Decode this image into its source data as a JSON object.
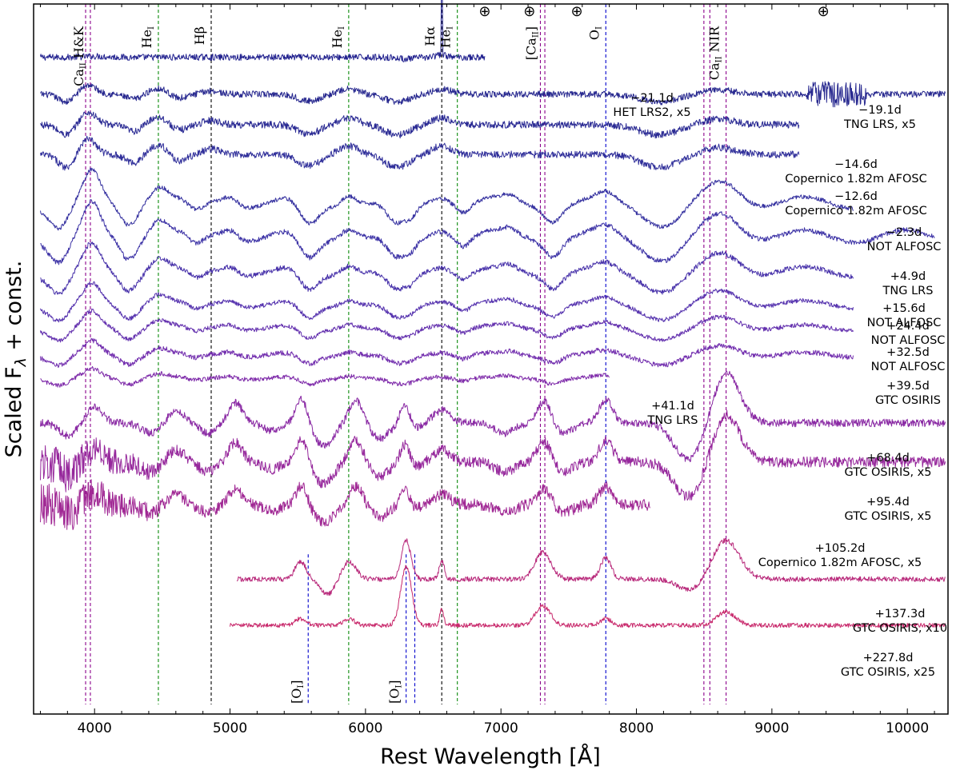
{
  "chart_data": {
    "type": "line",
    "title": "",
    "xlabel": "Rest Wavelength [Å]",
    "ylabel": "Scaled F_λ + const.",
    "ylabel_main": "Scaled F",
    "ylabel_sub": "λ",
    "ylabel_rest": " + const.",
    "xlim": [
      3550,
      10300
    ],
    "ylim": [
      0,
      100
    ],
    "xticks": [
      {
        "value": 4000,
        "label": "4000"
      },
      {
        "value": 5000,
        "label": "5000"
      },
      {
        "value": 6000,
        "label": "6000"
      },
      {
        "value": 7000,
        "label": "7000"
      },
      {
        "value": 8000,
        "label": "8000"
      },
      {
        "value": 9000,
        "label": "9000"
      },
      {
        "value": 10000,
        "label": "10000"
      }
    ],
    "telluric_symbol": "⊕",
    "telluric_wavelengths": [
      6880,
      7210,
      7560,
      9380
    ],
    "line_markers": [
      {
        "name": "Ca II H&K",
        "label": "Ca",
        "ion": "II",
        "suffix": " H&K",
        "wavelengths": [
          3934,
          3969
        ],
        "color": "#8b008b",
        "pos": "top"
      },
      {
        "name": "He I 4471",
        "label": "He",
        "ion": "I",
        "suffix": "",
        "wavelengths": [
          4471
        ],
        "color": "#0a8a0a",
        "pos": "top"
      },
      {
        "name": "H beta",
        "label": "Hβ",
        "ion": "",
        "suffix": "",
        "wavelengths": [
          4861
        ],
        "color": "#000000",
        "pos": "top"
      },
      {
        "name": "He I 5876",
        "label": "He",
        "ion": "I",
        "suffix": "",
        "wavelengths": [
          5876
        ],
        "color": "#0a8a0a",
        "pos": "top"
      },
      {
        "name": "H alpha",
        "label": "Hα",
        "ion": "",
        "suffix": "",
        "wavelengths": [
          6563
        ],
        "color": "#000000",
        "pos": "top"
      },
      {
        "name": "He I 6678",
        "label": "He",
        "ion": "I",
        "suffix": "",
        "wavelengths": [
          6678
        ],
        "color": "#0a8a0a",
        "pos": "top"
      },
      {
        "name": "[Ca II]",
        "label": "[Ca",
        "ion": "II",
        "suffix": "]",
        "wavelengths": [
          7291,
          7324
        ],
        "color": "#8b008b",
        "pos": "top"
      },
      {
        "name": "O I 7774",
        "label": "O",
        "ion": "I",
        "suffix": "",
        "wavelengths": [
          7774
        ],
        "color": "#0000cc",
        "pos": "top"
      },
      {
        "name": "Ca II NIR",
        "label": "Ca",
        "ion": "II",
        "suffix": " NIR",
        "wavelengths": [
          8498,
          8542,
          8662
        ],
        "color": "#8b008b",
        "pos": "top"
      },
      {
        "name": "[O I] 5577",
        "label": "[O",
        "ion": "I",
        "suffix": "]",
        "wavelengths": [
          5577
        ],
        "color": "#0000cc",
        "pos": "bottom"
      },
      {
        "name": "[O I] 6300,6364",
        "label": "[O",
        "ion": "I",
        "suffix": "]",
        "wavelengths": [
          6300,
          6364
        ],
        "color": "#0000cc",
        "pos": "bottom"
      }
    ],
    "series": [
      {
        "name": "-21.1d",
        "phase": "−21.1d",
        "instrument": "HET LRS2, x5",
        "xmin": 3600,
        "xmax": 6880,
        "offset": 92.5,
        "amp": 0.9,
        "noise": 0.45,
        "color": "#22228f",
        "profile": "hot",
        "narrow": true
      },
      {
        "name": "-19.1d",
        "phase": "−19.1d",
        "instrument": "TNG LRS, x5",
        "xmin": 3600,
        "xmax": 10280,
        "offset": 87.3,
        "amp": 1.2,
        "noise": 0.45,
        "color": "#27288f",
        "profile": "early",
        "noisy_red": true
      },
      {
        "name": "-14.6d",
        "phase": "−14.6d",
        "instrument": "Copernico 1.82m AFOSC",
        "xmin": 3600,
        "xmax": 9200,
        "offset": 83.0,
        "amp": 1.6,
        "noise": 0.5,
        "color": "#2b2b94",
        "profile": "early"
      },
      {
        "name": "-12.6d",
        "phase": "−12.6d",
        "instrument": "Copernico 1.82m AFOSC",
        "xmin": 3600,
        "xmax": 9200,
        "offset": 78.8,
        "amp": 2.0,
        "noise": 0.5,
        "color": "#302f9a",
        "profile": "early"
      },
      {
        "name": "-2.3d",
        "phase": "−2.3d",
        "instrument": "NOT ALFOSC",
        "xmin": 3600,
        "xmax": 9600,
        "offset": 72.0,
        "amp": 2.8,
        "noise": 0.3,
        "color": "#3632a0",
        "profile": "photo"
      },
      {
        "name": "+4.9d",
        "phase": "+4.9d",
        "instrument": "TNG LRS",
        "xmin": 3600,
        "xmax": 10200,
        "offset": 67.3,
        "amp": 2.9,
        "noise": 0.35,
        "color": "#3d33a6",
        "profile": "photo"
      },
      {
        "name": "+15.6d",
        "phase": "+15.6d",
        "instrument": "NOT ALFOSC",
        "xmin": 3600,
        "xmax": 9600,
        "offset": 62.3,
        "amp": 2.4,
        "noise": 0.35,
        "color": "#4832aa",
        "profile": "photo"
      },
      {
        "name": "+24.4d",
        "phase": "+24.4d",
        "instrument": "NOT ALFOSC",
        "xmin": 3600,
        "xmax": 9600,
        "offset": 57.7,
        "amp": 1.8,
        "noise": 0.3,
        "color": "#5532ae",
        "profile": "photo"
      },
      {
        "name": "+32.5d",
        "phase": "+32.5d",
        "instrument": "NOT ALFOSC",
        "xmin": 3600,
        "xmax": 9600,
        "offset": 54.4,
        "amp": 1.4,
        "noise": 0.3,
        "color": "#6330ae",
        "profile": "photo"
      },
      {
        "name": "+39.5d",
        "phase": "+39.5d",
        "instrument": "GTC OSIRIS",
        "xmin": 3600,
        "xmax": 9600,
        "offset": 50.6,
        "amp": 1.2,
        "noise": 0.35,
        "color": "#722eae",
        "profile": "photo"
      },
      {
        "name": "+41.1d",
        "phase": "+41.1d",
        "instrument": "TNG LRS",
        "xmin": 3600,
        "xmax": 7800,
        "offset": 47.3,
        "amp": 0.8,
        "noise": 0.3,
        "color": "#7f2caa",
        "profile": "photo"
      },
      {
        "name": "+68.4d",
        "phase": "+68.4d",
        "instrument": "GTC OSIRIS, x5",
        "xmin": 3600,
        "xmax": 10280,
        "offset": 41.0,
        "amp": 3.6,
        "noise": 0.55,
        "color": "#8a2aa4",
        "profile": "trans"
      },
      {
        "name": "+95.4d",
        "phase": "+95.4d",
        "instrument": "GTC OSIRIS, x5",
        "xmin": 3600,
        "xmax": 10280,
        "offset": 35.5,
        "amp": 3.4,
        "noise": 0.75,
        "color": "#96289c",
        "profile": "trans",
        "noisy_blue": true
      },
      {
        "name": "+105.2d",
        "phase": "+105.2d",
        "instrument": "Copernico 1.82m AFOSC, x5",
        "xmin": 3600,
        "xmax": 8100,
        "offset": 29.5,
        "amp": 2.8,
        "noise": 0.8,
        "color": "#a02894",
        "profile": "trans",
        "noisy_blue": true
      },
      {
        "name": "+137.3d",
        "phase": "+137.3d",
        "instrument": "GTC OSIRIS, x10",
        "xmin": 5050,
        "xmax": 10280,
        "offset": 19.0,
        "amp": 4.2,
        "noise": 0.35,
        "color": "#b8287a",
        "profile": "neb"
      },
      {
        "name": "+227.8d",
        "phase": "+227.8d",
        "instrument": "GTC OSIRIS, x25",
        "xmin": 5000,
        "xmax": 10280,
        "offset": 12.5,
        "amp": 4.6,
        "noise": 0.3,
        "color": "#c8286b",
        "profile": "neb2"
      }
    ]
  }
}
